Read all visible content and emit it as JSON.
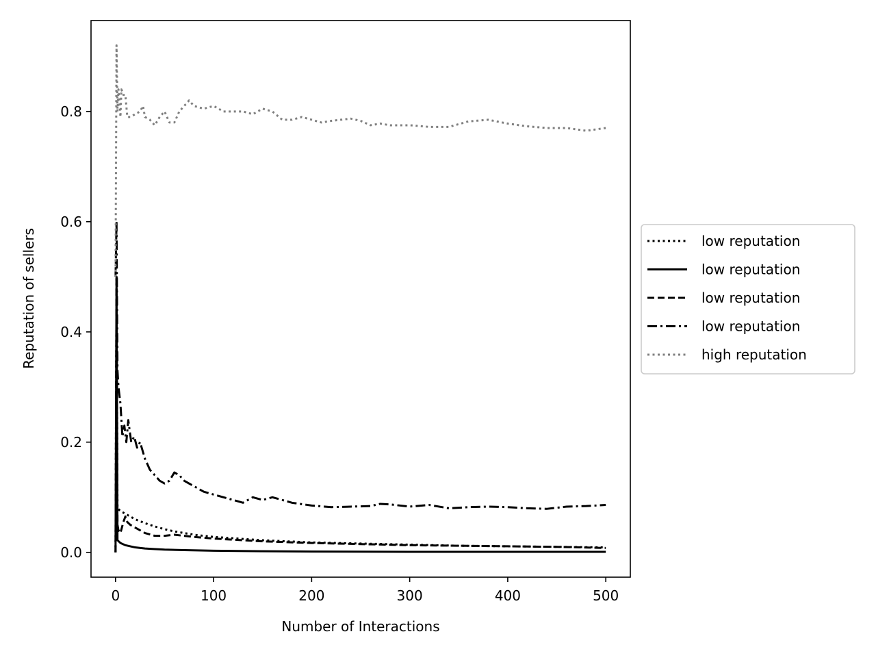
{
  "chart_data": {
    "type": "line",
    "title": "",
    "xlabel": "Number of Interactions",
    "ylabel": "Reputation of sellers",
    "xlim": [
      -25,
      525
    ],
    "ylim": [
      -0.045,
      0.965
    ],
    "xticks": [
      0,
      100,
      200,
      300,
      400,
      500
    ],
    "xtick_labels": [
      "0",
      "100",
      "200",
      "300",
      "400",
      "500"
    ],
    "yticks": [
      0.0,
      0.2,
      0.4,
      0.6,
      0.8
    ],
    "ytick_labels": [
      "0.0",
      "0.2",
      "0.4",
      "0.6",
      "0.8"
    ],
    "grid": false,
    "legend_position": "outside right, center",
    "series": [
      {
        "name": "low reputation",
        "color": "#000000",
        "style": "dotted",
        "x": [
          0,
          1,
          2,
          5,
          10,
          20,
          30,
          40,
          50,
          60,
          80,
          100,
          150,
          200,
          250,
          300,
          350,
          400,
          450,
          500
        ],
        "y": [
          0.0,
          0.5,
          0.08,
          0.075,
          0.07,
          0.06,
          0.053,
          0.047,
          0.042,
          0.038,
          0.032,
          0.028,
          0.022,
          0.018,
          0.016,
          0.014,
          0.012,
          0.011,
          0.01,
          0.009
        ]
      },
      {
        "name": "low reputation",
        "color": "#000000",
        "style": "solid",
        "x": [
          0,
          1,
          2,
          5,
          10,
          20,
          30,
          40,
          50,
          70,
          100,
          150,
          200,
          300,
          400,
          500
        ],
        "y": [
          0.0,
          0.5,
          0.022,
          0.017,
          0.013,
          0.009,
          0.007,
          0.006,
          0.005,
          0.004,
          0.003,
          0.002,
          0.0015,
          0.001,
          0.001,
          0.001
        ]
      },
      {
        "name": "low reputation",
        "color": "#000000",
        "style": "dashed",
        "x": [
          0,
          1,
          2,
          3,
          5,
          8,
          10,
          12,
          15,
          20,
          25,
          30,
          40,
          50,
          60,
          80,
          100,
          150,
          200,
          250,
          300,
          350,
          400,
          450,
          500
        ],
        "y": [
          0.0,
          0.5,
          0.05,
          0.04,
          0.035,
          0.055,
          0.065,
          0.055,
          0.05,
          0.045,
          0.04,
          0.035,
          0.03,
          0.03,
          0.032,
          0.028,
          0.025,
          0.02,
          0.017,
          0.015,
          0.013,
          0.012,
          0.011,
          0.01,
          0.008
        ]
      },
      {
        "name": "low reputation",
        "color": "#000000",
        "style": "dashdot",
        "x": [
          0,
          1,
          2,
          3,
          5,
          7,
          9,
          11,
          13,
          16,
          19,
          22,
          25,
          30,
          35,
          40,
          45,
          50,
          55,
          60,
          65,
          70,
          80,
          90,
          100,
          110,
          120,
          130,
          140,
          150,
          160,
          170,
          180,
          200,
          220,
          240,
          260,
          270,
          280,
          300,
          320,
          340,
          360,
          380,
          400,
          420,
          440,
          460,
          480,
          500
        ],
        "y": [
          0.5,
          0.6,
          0.33,
          0.3,
          0.27,
          0.21,
          0.23,
          0.2,
          0.24,
          0.2,
          0.21,
          0.19,
          0.2,
          0.17,
          0.15,
          0.14,
          0.13,
          0.125,
          0.13,
          0.145,
          0.14,
          0.13,
          0.12,
          0.11,
          0.105,
          0.1,
          0.095,
          0.09,
          0.1,
          0.095,
          0.1,
          0.095,
          0.09,
          0.085,
          0.082,
          0.083,
          0.084,
          0.088,
          0.087,
          0.083,
          0.086,
          0.08,
          0.082,
          0.083,
          0.082,
          0.08,
          0.079,
          0.083,
          0.084,
          0.086
        ]
      },
      {
        "name": "high reputation",
        "color": "#7f7f7f",
        "style": "dotted",
        "x": [
          0,
          1,
          2,
          3,
          4,
          5,
          6,
          8,
          10,
          12,
          15,
          20,
          25,
          28,
          30,
          35,
          40,
          45,
          50,
          55,
          60,
          65,
          70,
          75,
          80,
          90,
          100,
          110,
          120,
          130,
          140,
          150,
          160,
          170,
          180,
          190,
          200,
          210,
          220,
          230,
          240,
          250,
          260,
          270,
          280,
          300,
          320,
          340,
          360,
          380,
          400,
          420,
          440,
          460,
          480,
          500
        ],
        "y": [
          0.5,
          0.92,
          0.8,
          0.84,
          0.82,
          0.79,
          0.84,
          0.83,
          0.83,
          0.79,
          0.79,
          0.795,
          0.8,
          0.81,
          0.79,
          0.785,
          0.775,
          0.79,
          0.8,
          0.78,
          0.78,
          0.8,
          0.81,
          0.82,
          0.81,
          0.805,
          0.81,
          0.8,
          0.8,
          0.8,
          0.795,
          0.805,
          0.8,
          0.785,
          0.785,
          0.79,
          0.785,
          0.78,
          0.783,
          0.785,
          0.787,
          0.783,
          0.775,
          0.778,
          0.775,
          0.775,
          0.772,
          0.772,
          0.782,
          0.785,
          0.778,
          0.773,
          0.77,
          0.77,
          0.765,
          0.77
        ]
      }
    ]
  }
}
